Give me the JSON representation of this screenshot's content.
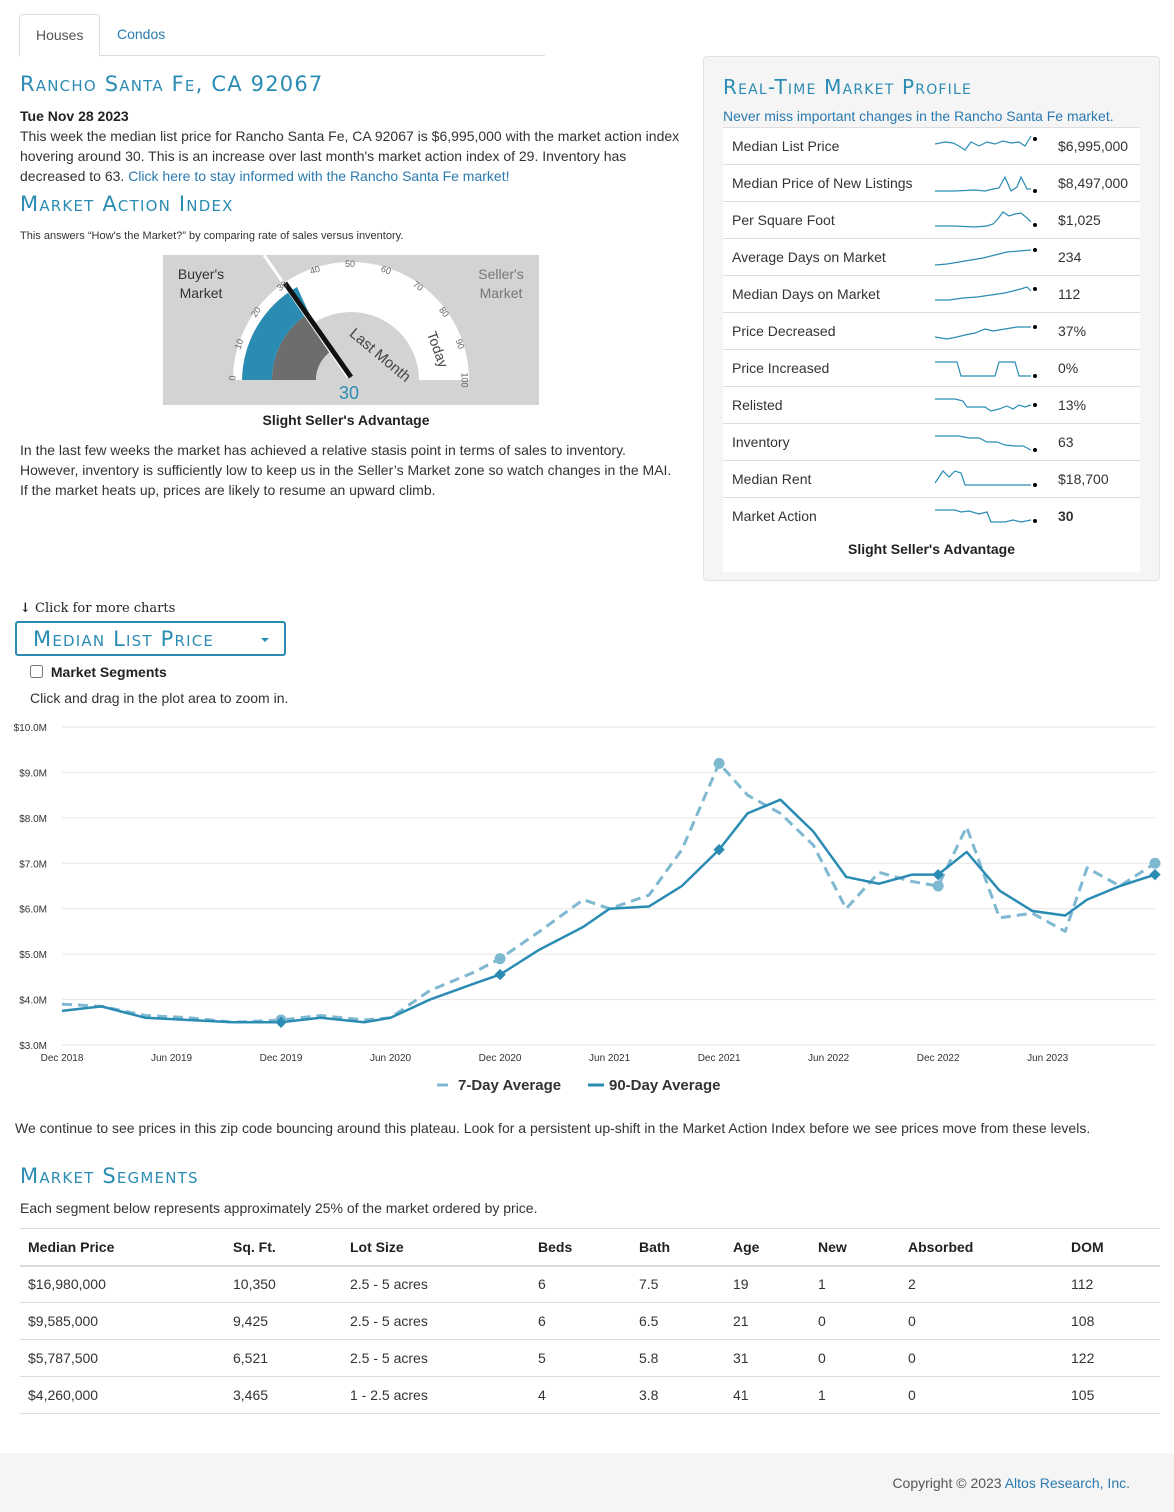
{
  "tabs": [
    {
      "label": "Houses",
      "active": true
    },
    {
      "label": "Condos",
      "active": false
    }
  ],
  "summary": {
    "title": "Rancho Santa Fe, CA 92067",
    "date": "Tue Nov 28 2023",
    "text": "This week the median list price for Rancho Santa Fe, CA 92067 is $6,995,000 with the market action index hovering around 30. This is an increase over last month's market action index of 29. Inventory has decreased to 63.",
    "link": "Click here to stay informed with the Rancho Santa Fe market!"
  },
  "mai": {
    "title": "Market Action Index",
    "subtitle": "This answers “How's the Market?” by comparing rate of sales versus inventory.",
    "value": "30",
    "buyer_label": "Buyer's Market",
    "seller_label": "Seller's Market",
    "last_month_label": "Last Month",
    "today_label": "Today",
    "ticks": [
      "0",
      "10",
      "20",
      "30",
      "40",
      "50",
      "60",
      "70",
      "80",
      "90",
      "100"
    ],
    "caption": "Slight Seller's Advantage",
    "paragraph": "In the last few weeks the market has achieved a relative stasis point in terms of sales to inventory. However, inventory is sufficiently low to keep us in the Seller’s Market zone so watch changes in the MAI. If the market heats up, prices are likely to resume an upward climb."
  },
  "profile": {
    "title": "Real-Time Market Profile",
    "subtitle": "Never miss important changes in the Rancho Santa Fe market.",
    "rows": [
      {
        "label": "Median List Price",
        "value": "$6,995,000"
      },
      {
        "label": "Median Price of New Listings",
        "value": "$8,497,000"
      },
      {
        "label": "Per Square Foot",
        "value": "$1,025"
      },
      {
        "label": "Average Days on Market",
        "value": "234"
      },
      {
        "label": "Median Days on Market",
        "value": "112"
      },
      {
        "label": "Price Decreased",
        "value": "37%"
      },
      {
        "label": "Price Increased",
        "value": "0%"
      },
      {
        "label": "Relisted",
        "value": "13%"
      },
      {
        "label": "Inventory",
        "value": "63"
      },
      {
        "label": "Median Rent",
        "value": "$18,700"
      },
      {
        "label": "Market Action",
        "value": "30"
      }
    ],
    "footer": "Slight Seller's Advantage"
  },
  "charts_section": {
    "more_charts": "Click for more charts",
    "dropdown_label": "Median List Price",
    "segments_checkbox": "Market Segments",
    "zoom_hint": "Click and drag in the plot area to zoom in."
  },
  "chart_data": {
    "type": "line",
    "title": "Median List Price",
    "xlabel": "",
    "ylabel": "",
    "ylim": [
      3.0,
      10.0
    ],
    "y_ticks": [
      "$3.0M",
      "$4.0M",
      "$5.0M",
      "$6.0M",
      "$7.0M",
      "$8.0M",
      "$9.0M",
      "$10.0M"
    ],
    "x_ticks": [
      "Dec 2018",
      "Jun 2019",
      "Dec 2019",
      "Jun 2020",
      "Dec 2020",
      "Jun 2021",
      "Dec 2021",
      "Jun 2022",
      "Dec 2022",
      "Jun 2023"
    ],
    "x": [
      2018.92,
      2019.1,
      2019.3,
      2019.5,
      2019.7,
      2019.92,
      2020.1,
      2020.3,
      2020.42,
      2020.6,
      2020.8,
      2020.92,
      2021.1,
      2021.3,
      2021.42,
      2021.6,
      2021.75,
      2021.92,
      2022.05,
      2022.2,
      2022.35,
      2022.5,
      2022.65,
      2022.8,
      2022.92,
      2023.05,
      2023.2,
      2023.35,
      2023.5,
      2023.6,
      2023.75,
      2023.91
    ],
    "series": [
      {
        "name": "7-Day Average",
        "style": "dashed",
        "color": "#7fb8d1",
        "values": [
          3.9,
          3.85,
          3.65,
          3.6,
          3.5,
          3.55,
          3.65,
          3.55,
          3.6,
          4.2,
          4.6,
          4.9,
          5.5,
          6.2,
          6.0,
          6.3,
          7.3,
          9.2,
          8.5,
          8.1,
          7.4,
          6.0,
          6.8,
          6.6,
          6.5,
          7.8,
          5.8,
          5.9,
          5.5,
          6.9,
          6.5,
          7.0
        ]
      },
      {
        "name": "90-Day Average",
        "style": "solid",
        "color": "#2b8cb3",
        "values": [
          3.75,
          3.85,
          3.6,
          3.55,
          3.5,
          3.5,
          3.6,
          3.5,
          3.6,
          4.0,
          4.35,
          4.55,
          5.1,
          5.6,
          6.0,
          6.05,
          6.5,
          7.3,
          8.1,
          8.4,
          7.7,
          6.7,
          6.55,
          6.75,
          6.75,
          7.25,
          6.4,
          5.95,
          5.85,
          6.2,
          6.5,
          6.75
        ]
      }
    ]
  },
  "chart_note": "We continue to see prices in this zip code bouncing around this plateau. Look for a persistent up-shift in the Market Action Index before we see prices move from these levels.",
  "segments": {
    "title": "Market Segments",
    "subtitle": "Each segment below represents approximately 25% of the market ordered by price.",
    "headers": [
      "Median Price",
      "Sq. Ft.",
      "Lot Size",
      "Beds",
      "Bath",
      "Age",
      "New",
      "Absorbed",
      "DOM"
    ],
    "rows": [
      [
        "$16,980,000",
        "10,350",
        "2.5 - 5 acres",
        "6",
        "7.5",
        "19",
        "1",
        "2",
        "112"
      ],
      [
        "$9,585,000",
        "9,425",
        "2.5 - 5 acres",
        "6",
        "6.5",
        "21",
        "0",
        "0",
        "108"
      ],
      [
        "$5,787,500",
        "6,521",
        "2.5 - 5 acres",
        "5",
        "5.8",
        "31",
        "0",
        "0",
        "122"
      ],
      [
        "$4,260,000",
        "3,465",
        "1 - 2.5 acres",
        "4",
        "3.8",
        "41",
        "1",
        "0",
        "105"
      ]
    ]
  },
  "footer": {
    "copyright": "Copyright © 2023",
    "company": "Altos Research, Inc."
  },
  "colors": {
    "accent": "#2b8cb3",
    "light_series": "#7fb8d1"
  }
}
